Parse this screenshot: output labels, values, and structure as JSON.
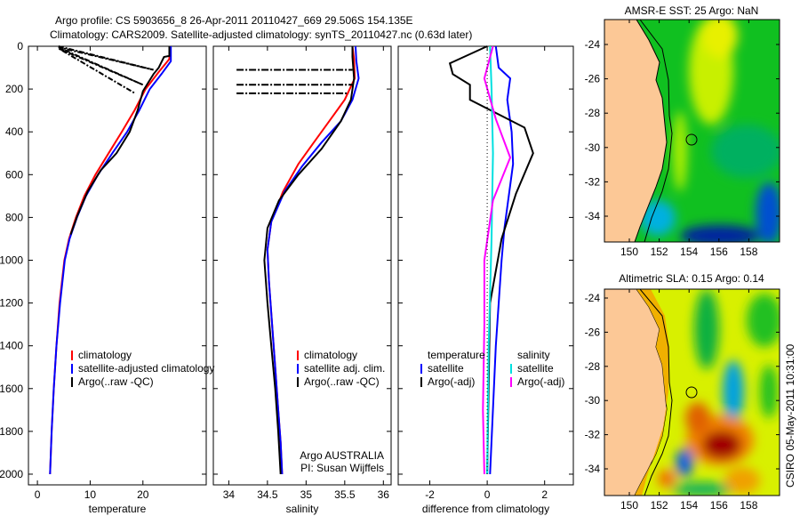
{
  "title": {
    "line1": "Argo profile: CS 5903656_8 26-Apr-2011 20110427_669 29.506S 154.135E",
    "line2": "Climatology: CARS2009. Satellite-adjusted climatology: synTS_20110427.nc (0.63d later)"
  },
  "footer_stamp": "CSIRO 05-May-2011 10:31:00",
  "chart_data": [
    {
      "type": "line",
      "id": "temperature",
      "xlabel": "temperature",
      "ylabel": "",
      "xlim": [
        -1.7,
        32
      ],
      "ylim": [
        0,
        2050
      ],
      "xticks": [
        "0",
        "10",
        "20"
      ],
      "xtick_values": [
        0,
        10,
        20
      ],
      "yticks": [
        "0",
        "200",
        "400",
        "600",
        "800",
        "1000",
        "1200",
        "1400",
        "1600",
        "1800",
        "2000"
      ],
      "ytick_values": [
        0,
        200,
        400,
        600,
        800,
        1000,
        1200,
        1400,
        1600,
        1800,
        2000
      ],
      "legend": [
        "climatology",
        "satellite-adjusted climatology",
        "Argo(..raw -QC)"
      ],
      "series": [
        {
          "name": "climatology",
          "color": "#ff0000",
          "points": [
            [
              25,
              0
            ],
            [
              25,
              60
            ],
            [
              23,
              120
            ],
            [
              20.5,
              200
            ],
            [
              18.4,
              300
            ],
            [
              16,
              400
            ],
            [
              13.5,
              500
            ],
            [
              11,
              600
            ],
            [
              8.9,
              700
            ],
            [
              7.3,
              800
            ],
            [
              6,
              900
            ],
            [
              5.1,
              1000
            ],
            [
              4.2,
              1200
            ],
            [
              3.6,
              1400
            ],
            [
              3.1,
              1600
            ],
            [
              2.7,
              1800
            ],
            [
              2.4,
              2000
            ]
          ]
        },
        {
          "name": "satellite-adjusted climatology",
          "color": "#0000ff",
          "points": [
            [
              25.3,
              0
            ],
            [
              25.3,
              70
            ],
            [
              23.5,
              130
            ],
            [
              21.3,
              200
            ],
            [
              19.3,
              300
            ],
            [
              17,
              400
            ],
            [
              14.2,
              500
            ],
            [
              11.5,
              600
            ],
            [
              9.2,
              700
            ],
            [
              7.5,
              800
            ],
            [
              6.1,
              900
            ],
            [
              5.2,
              1000
            ],
            [
              4.3,
              1200
            ],
            [
              3.6,
              1400
            ],
            [
              3.1,
              1600
            ],
            [
              2.7,
              1800
            ],
            [
              2.4,
              2000
            ]
          ]
        },
        {
          "name": "Argo(..raw -QC)",
          "color": "#000000",
          "points": [
            [
              25,
              0
            ],
            [
              25,
              45
            ],
            [
              24,
              50
            ],
            [
              23,
              100
            ],
            [
              22,
              130
            ],
            [
              21,
              170
            ],
            [
              20,
              210
            ],
            [
              19,
              300
            ],
            [
              17.5,
              400
            ],
            [
              15,
              500
            ],
            [
              12,
              580
            ],
            [
              9.5,
              680
            ],
            [
              7.6,
              790
            ],
            [
              6.3,
              880
            ]
          ]
        },
        {
          "name": "Argo raw spikes",
          "color": "#000000",
          "dash": "6,2,2,2",
          "points": [
            [
              4,
              0
            ],
            [
              22,
              110
            ],
            [
              4,
              5
            ],
            [
              20,
              180
            ],
            [
              4,
              10
            ],
            [
              18.5,
              220
            ]
          ]
        }
      ]
    },
    {
      "type": "line",
      "id": "salinity",
      "xlabel": "salinity",
      "xlim": [
        33.8,
        36.1
      ],
      "ylim": [
        0,
        2050
      ],
      "xticks": [
        "34",
        "34.5",
        "35",
        "35.5",
        "36"
      ],
      "xtick_values": [
        34,
        34.5,
        35,
        35.5,
        36
      ],
      "legend": [
        "climatology",
        "satellite adj. clim.",
        "Argo(..raw -QC)"
      ],
      "annotation": [
        "Argo AUSTRALIA",
        "PI: Susan Wijffels"
      ],
      "series": [
        {
          "name": "climatology",
          "color": "#ff0000",
          "points": [
            [
              35.6,
              0
            ],
            [
              35.62,
              60
            ],
            [
              35.63,
              150
            ],
            [
              35.5,
              250
            ],
            [
              35.3,
              350
            ],
            [
              35.1,
              450
            ],
            [
              34.9,
              550
            ],
            [
              34.7,
              680
            ],
            [
              34.55,
              820
            ],
            [
              34.5,
              950
            ],
            [
              34.52,
              1100
            ],
            [
              34.56,
              1300
            ],
            [
              34.6,
              1500
            ],
            [
              34.64,
              1700
            ],
            [
              34.67,
              1850
            ],
            [
              34.69,
              2000
            ]
          ]
        },
        {
          "name": "satellite adj. clim.",
          "color": "#0000ff",
          "points": [
            [
              35.64,
              0
            ],
            [
              35.65,
              70
            ],
            [
              35.68,
              150
            ],
            [
              35.6,
              250
            ],
            [
              35.45,
              350
            ],
            [
              35.2,
              450
            ],
            [
              34.95,
              560
            ],
            [
              34.72,
              680
            ],
            [
              34.55,
              820
            ],
            [
              34.5,
              950
            ],
            [
              34.52,
              1100
            ],
            [
              34.56,
              1300
            ],
            [
              34.6,
              1500
            ],
            [
              34.64,
              1700
            ],
            [
              34.67,
              1850
            ],
            [
              34.69,
              2000
            ]
          ]
        },
        {
          "name": "Argo(..raw -QC)",
          "color": "#000000",
          "points": [
            [
              35.6,
              0
            ],
            [
              35.6,
              50
            ],
            [
              35.62,
              150
            ],
            [
              35.58,
              250
            ],
            [
              35.45,
              350
            ],
            [
              35.2,
              480
            ],
            [
              34.9,
              600
            ],
            [
              34.65,
              720
            ],
            [
              34.5,
              850
            ],
            [
              34.46,
              1000
            ],
            [
              34.5,
              1200
            ],
            [
              34.55,
              1400
            ],
            [
              34.6,
              1600
            ],
            [
              34.64,
              1800
            ],
            [
              34.67,
              2000
            ]
          ]
        },
        {
          "name": "Argo raw spikes",
          "color": "#000000",
          "dash": "8,2,2,2",
          "points": [
            [
              34.1,
              110
            ],
            [
              35.6,
              110
            ],
            null,
            [
              34.1,
              180
            ],
            [
              35.6,
              180
            ],
            null,
            [
              34.1,
              220
            ],
            [
              35.55,
              220
            ]
          ]
        }
      ]
    },
    {
      "type": "line",
      "id": "difference",
      "xlabel": "difference from climatology",
      "xlim": [
        -3.1,
        3
      ],
      "ylim": [
        0,
        2050
      ],
      "xticks": [
        "-2",
        "0",
        "2"
      ],
      "xtick_values": [
        -2,
        0,
        2
      ],
      "legend_temperature": {
        "title": "temperature",
        "items": [
          "satellite",
          "Argo(-adj)"
        ]
      },
      "legend_salinity": {
        "title": "salinity",
        "items": [
          "satellite",
          "Argo(-adj)"
        ]
      },
      "series": [
        {
          "name": "temperature satellite",
          "color": "#0000ff",
          "points": [
            [
              0.3,
              0
            ],
            [
              0.4,
              100
            ],
            [
              0.8,
              150
            ],
            [
              0.7,
              250
            ],
            [
              0.85,
              400
            ],
            [
              0.9,
              550
            ],
            [
              0.6,
              850
            ],
            [
              0.5,
              1000
            ],
            [
              0.3,
              1400
            ],
            [
              0.1,
              2000
            ]
          ]
        },
        {
          "name": "temperature Argo(-adj)",
          "color": "#000000",
          "points": [
            [
              0,
              0
            ],
            [
              -1.3,
              80
            ],
            [
              -1.2,
              130
            ],
            [
              -0.6,
              180
            ],
            [
              -0.6,
              250
            ],
            [
              1.3,
              380
            ],
            [
              1.6,
              500
            ],
            [
              1,
              690
            ],
            [
              0.5,
              900
            ],
            [
              0.1,
              1200
            ],
            [
              0,
              2000
            ]
          ]
        },
        {
          "name": "salinity satellite",
          "color": "#00e0e0",
          "points": [
            [
              0.1,
              0
            ],
            [
              0.15,
              200
            ],
            [
              0.2,
              500
            ],
            [
              0.15,
              900
            ],
            [
              0.05,
              1400
            ],
            [
              0,
              2000
            ]
          ]
        },
        {
          "name": "salinity Argo(-adj)",
          "color": "#ff00ff",
          "points": [
            [
              0.2,
              0
            ],
            [
              -0.1,
              150
            ],
            [
              0.3,
              340
            ],
            [
              0.8,
              520
            ],
            [
              0.2,
              720
            ],
            [
              -0.1,
              1000
            ],
            [
              -0.1,
              1300
            ],
            [
              -0.15,
              1700
            ],
            [
              -0.1,
              2000
            ]
          ]
        },
        {
          "name": "zero line",
          "color": "#000000",
          "dash": "1,3",
          "points": [
            [
              0,
              0
            ],
            [
              0,
              2000
            ]
          ]
        }
      ]
    },
    {
      "type": "heatmap",
      "id": "sst-map",
      "title": "AMSR-E SST: 25 Argo: NaN",
      "xticks": [
        "150",
        "152",
        "154",
        "156",
        "158"
      ],
      "yticks": [
        "-24",
        "-26",
        "-28",
        "-30",
        "-32",
        "-34"
      ],
      "argo_position": [
        154.135,
        -29.506
      ]
    },
    {
      "type": "heatmap",
      "id": "sla-map",
      "title": "Altimetric SLA: 0.15 Argo: 0.14",
      "xticks": [
        "150",
        "152",
        "154",
        "156",
        "158"
      ],
      "yticks": [
        "-24",
        "-26",
        "-28",
        "-30",
        "-32",
        "-34"
      ],
      "argo_position": [
        154.135,
        -29.506
      ]
    }
  ]
}
